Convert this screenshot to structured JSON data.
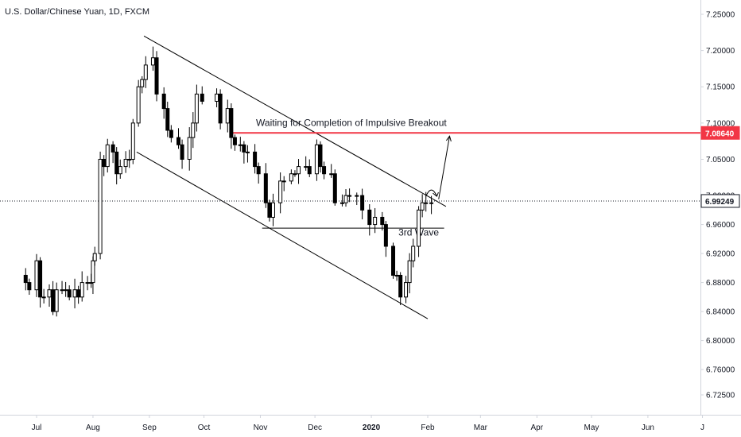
{
  "chart_data": {
    "type": "candlestick",
    "title": "U.S. Dollar/Chinese Yuan, 1D, FXCM",
    "y_ticks": [
      7.25,
      7.2,
      7.15,
      7.1,
      7.05,
      7.0,
      6.96,
      6.92,
      6.88,
      6.84,
      6.8,
      6.76,
      6.725
    ],
    "y_tick_labels": [
      "7.25000",
      "7.20000",
      "7.15000",
      "7.10000",
      "7.05000",
      "7.00000",
      "6.96000",
      "6.92000",
      "6.88000",
      "6.84000",
      "6.80000",
      "6.76000",
      "6.72500"
    ],
    "ylim": [
      6.705,
      7.275
    ],
    "x_ticks": [
      {
        "label": "Jul",
        "date": "2019-07-01",
        "bold": false
      },
      {
        "label": "Aug",
        "date": "2019-08-01",
        "bold": false
      },
      {
        "label": "Sep",
        "date": "2019-09-01",
        "bold": false
      },
      {
        "label": "Oct",
        "date": "2019-10-01",
        "bold": false
      },
      {
        "label": "Nov",
        "date": "2019-11-01",
        "bold": false
      },
      {
        "label": "Dec",
        "date": "2019-12-01",
        "bold": false
      },
      {
        "label": "2020",
        "date": "2020-01-01",
        "bold": true
      },
      {
        "label": "Feb",
        "date": "2020-02-01",
        "bold": false
      },
      {
        "label": "Mar",
        "date": "2020-03-01",
        "bold": false
      },
      {
        "label": "Apr",
        "date": "2020-04-01",
        "bold": false
      },
      {
        "label": "May",
        "date": "2020-05-01",
        "bold": false
      },
      {
        "label": "Jun",
        "date": "2020-06-01",
        "bold": false
      },
      {
        "label": "J",
        "date": "2020-07-01",
        "bold": false
      }
    ],
    "close_series": [
      [
        "2019-06-25",
        6.88
      ],
      [
        "2019-06-27",
        6.87
      ],
      [
        "2019-07-01",
        6.91
      ],
      [
        "2019-07-03",
        6.86
      ],
      [
        "2019-07-05",
        6.86
      ],
      [
        "2019-07-08",
        6.87
      ],
      [
        "2019-07-10",
        6.84
      ],
      [
        "2019-07-12",
        6.87
      ],
      [
        "2019-07-15",
        6.87
      ],
      [
        "2019-07-17",
        6.87
      ],
      [
        "2019-07-19",
        6.86
      ],
      [
        "2019-07-22",
        6.87
      ],
      [
        "2019-07-24",
        6.86
      ],
      [
        "2019-07-26",
        6.88
      ],
      [
        "2019-07-29",
        6.88
      ],
      [
        "2019-07-31",
        6.88
      ],
      [
        "2019-08-01",
        6.91
      ],
      [
        "2019-08-02",
        6.92
      ],
      [
        "2019-08-05",
        7.05
      ],
      [
        "2019-08-07",
        7.04
      ],
      [
        "2019-08-09",
        7.07
      ],
      [
        "2019-08-12",
        7.06
      ],
      [
        "2019-08-14",
        7.03
      ],
      [
        "2019-08-16",
        7.04
      ],
      [
        "2019-08-19",
        7.05
      ],
      [
        "2019-08-21",
        7.05
      ],
      [
        "2019-08-23",
        7.1
      ],
      [
        "2019-08-26",
        7.15
      ],
      [
        "2019-08-28",
        7.16
      ],
      [
        "2019-08-30",
        7.18
      ],
      [
        "2019-09-03",
        7.19
      ],
      [
        "2019-09-05",
        7.14
      ],
      [
        "2019-09-09",
        7.12
      ],
      [
        "2019-09-11",
        7.09
      ],
      [
        "2019-09-13",
        7.08
      ],
      [
        "2019-09-17",
        7.07
      ],
      [
        "2019-09-19",
        7.05
      ],
      [
        "2019-09-23",
        7.08
      ],
      [
        "2019-09-25",
        7.1
      ],
      [
        "2019-09-27",
        7.14
      ],
      [
        "2019-09-30",
        7.13
      ],
      [
        "2019-10-08",
        7.14
      ],
      [
        "2019-10-10",
        7.1
      ],
      [
        "2019-10-14",
        7.12
      ],
      [
        "2019-10-16",
        7.08
      ],
      [
        "2019-10-18",
        7.07
      ],
      [
        "2019-10-21",
        7.07
      ],
      [
        "2019-10-23",
        7.06
      ],
      [
        "2019-10-25",
        7.06
      ],
      [
        "2019-10-29",
        7.04
      ],
      [
        "2019-10-31",
        7.03
      ],
      [
        "2019-11-04",
        6.99
      ],
      [
        "2019-11-06",
        6.97
      ],
      [
        "2019-11-08",
        6.99
      ],
      [
        "2019-11-12",
        7.02
      ],
      [
        "2019-11-14",
        7.02
      ],
      [
        "2019-11-18",
        7.03
      ],
      [
        "2019-11-20",
        7.03
      ],
      [
        "2019-11-22",
        7.04
      ],
      [
        "2019-11-26",
        7.04
      ],
      [
        "2019-11-28",
        7.03
      ],
      [
        "2019-12-02",
        7.07
      ],
      [
        "2019-12-04",
        7.04
      ],
      [
        "2019-12-06",
        7.03
      ],
      [
        "2019-12-10",
        7.03
      ],
      [
        "2019-12-12",
        6.99
      ],
      [
        "2019-12-16",
        6.99
      ],
      [
        "2019-12-18",
        7.0
      ],
      [
        "2019-12-20",
        7.0
      ],
      [
        "2019-12-24",
        7.0
      ],
      [
        "2019-12-27",
        6.98
      ],
      [
        "2019-12-31",
        6.96
      ],
      [
        "2020-01-03",
        6.97
      ],
      [
        "2020-01-07",
        6.96
      ],
      [
        "2020-01-09",
        6.93
      ],
      [
        "2020-01-13",
        6.89
      ],
      [
        "2020-01-15",
        6.89
      ],
      [
        "2020-01-17",
        6.86
      ],
      [
        "2020-01-20",
        6.88
      ],
      [
        "2020-01-22",
        6.91
      ],
      [
        "2020-01-24",
        6.93
      ],
      [
        "2020-01-27",
        6.98
      ],
      [
        "2020-01-29",
        6.99
      ],
      [
        "2020-01-31",
        6.99
      ],
      [
        "2020-02-03",
        6.99
      ]
    ],
    "candles_hint": "last close 6.99249",
    "resistance_level": {
      "value": 7.0864,
      "label": "7.08640",
      "color": "#f23645"
    },
    "last_price": {
      "value": 6.99249,
      "label": "6.99249"
    },
    "support_line": {
      "value": 6.955,
      "from": "2019-11-02",
      "to": "2020-02-10"
    },
    "channel_upper": {
      "from": [
        "2019-08-29",
        7.22
      ],
      "to": [
        "2020-02-11",
        6.985
      ]
    },
    "channel_lower": {
      "from": [
        "2019-08-25",
        7.06
      ],
      "to": [
        "2020-02-01",
        6.83
      ]
    },
    "annotations": [
      {
        "text": "Waiting for Completion of Impulsive Breakout",
        "date": "2019-12-21",
        "value": 7.096
      },
      {
        "text": "3rd Wave",
        "date": "2020-01-27",
        "value": 6.945
      }
    ],
    "arrow_up": {
      "from": [
        "2020-02-07",
        6.995
      ],
      "to": [
        "2020-02-13",
        7.082
      ]
    },
    "curved_arrow": {
      "from": [
        "2020-01-31",
        7.0
      ],
      "to": [
        "2020-02-06",
        7.0
      ]
    },
    "grid": false,
    "colors": {
      "text": "#131722",
      "line": "#000000",
      "resistance": "#f23645",
      "axis_border": "#d1d4dc"
    }
  }
}
